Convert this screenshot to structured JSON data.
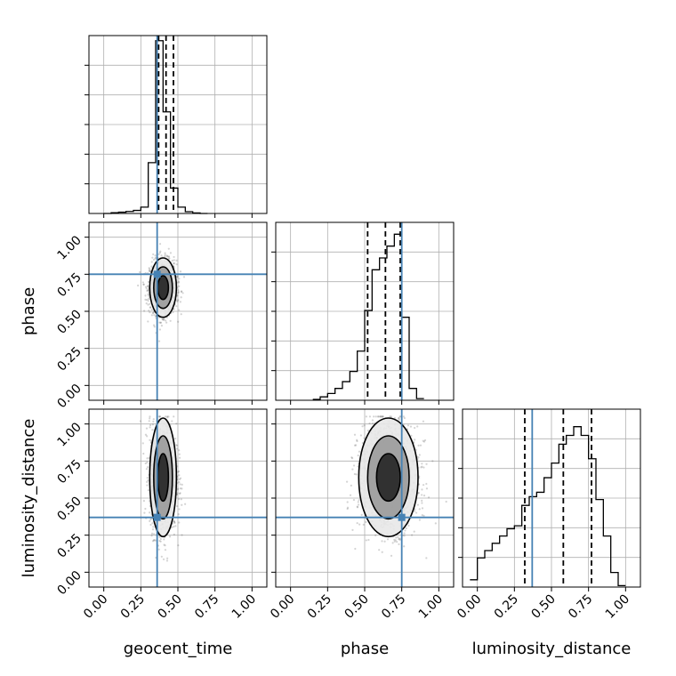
{
  "chart_data": {
    "type": "corner",
    "parameters": [
      "geocent_time",
      "phase",
      "luminosity_distance"
    ],
    "axis_range": [
      -0.1,
      1.1
    ],
    "ticks": [
      0.0,
      0.25,
      0.5,
      0.75,
      1.0
    ],
    "tick_labels": [
      "0.00",
      "0.25",
      "0.50",
      "0.75",
      "1.00"
    ],
    "truth_values": {
      "geocent_time": 0.36,
      "phase": 0.75,
      "luminosity_distance": 0.37
    },
    "truth_color": "#4682b4",
    "quantiles": {
      "geocent_time": [
        0.37,
        0.42,
        0.47
      ],
      "phase": [
        0.52,
        0.64,
        0.74
      ],
      "luminosity_distance": [
        0.32,
        0.58,
        0.77
      ]
    },
    "histograms": {
      "geocent_time": {
        "bin_edges": [
          0.0,
          0.05,
          0.1,
          0.15,
          0.2,
          0.25,
          0.3,
          0.35,
          0.4,
          0.45,
          0.5,
          0.55,
          0.6,
          0.65,
          0.7
        ],
        "counts": [
          0.0,
          0.3,
          0.5,
          0.8,
          1.2,
          2.5,
          20,
          68,
          40,
          10,
          2.5,
          0.7,
          0.2,
          0.0
        ],
        "ymax": 70
      },
      "phase": {
        "bin_edges": [
          0.15,
          0.2,
          0.25,
          0.3,
          0.35,
          0.4,
          0.45,
          0.5,
          0.55,
          0.6,
          0.65,
          0.7,
          0.75,
          0.8,
          0.85,
          0.9
        ],
        "counts": [
          0.5,
          2,
          4,
          7,
          11,
          17,
          29,
          53,
          77,
          84,
          91,
          98,
          49,
          7,
          1
        ],
        "ymax": 105
      },
      "luminosity_distance": {
        "bin_edges": [
          -0.05,
          0.0,
          0.05,
          0.1,
          0.15,
          0.2,
          0.25,
          0.3,
          0.35,
          0.4,
          0.45,
          0.5,
          0.55,
          0.6,
          0.65,
          0.7,
          0.75,
          0.8,
          0.85,
          0.9,
          0.95,
          1.0
        ],
        "counts": [
          5,
          20,
          25,
          30,
          35,
          40,
          42,
          56,
          62,
          65,
          75,
          85,
          98,
          104,
          110,
          104,
          88,
          60,
          35,
          10,
          1
        ],
        "ymax": 122
      }
    },
    "contour_levels": [
      "inner",
      "middle",
      "outer"
    ]
  }
}
